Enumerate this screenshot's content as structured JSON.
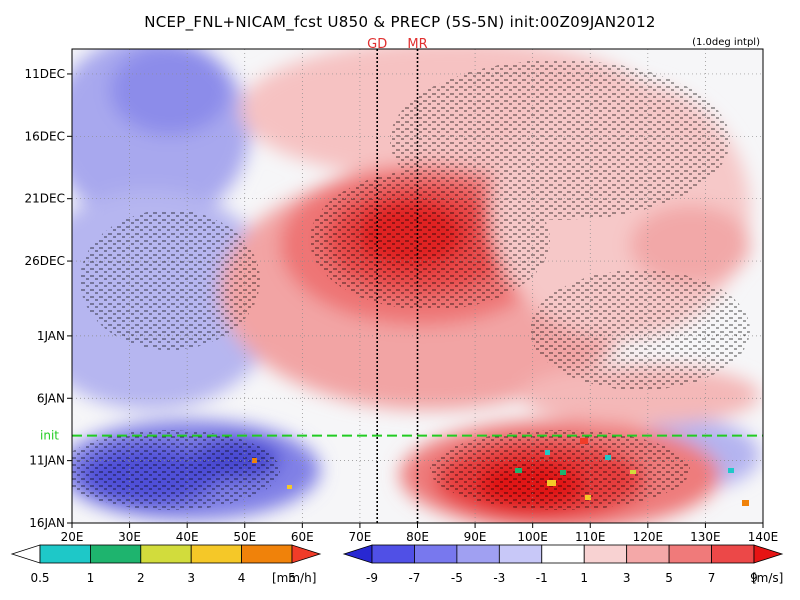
{
  "chart_data": {
    "type": "heatmap",
    "title": "NCEP_FNL+NICAM_fcst U850 & PRECP (5S-5N) init:00Z09JAN2012",
    "subtitle": "(1.0deg intpl)",
    "xlabel": "",
    "ylabel": "",
    "x_ticks": [
      "20E",
      "30E",
      "40E",
      "50E",
      "60E",
      "70E",
      "80E",
      "90E",
      "100E",
      "110E",
      "120E",
      "130E",
      "140E"
    ],
    "x_values": [
      20,
      30,
      40,
      50,
      60,
      70,
      80,
      90,
      100,
      110,
      120,
      130,
      140
    ],
    "xlim": [
      20,
      140
    ],
    "y_ticks": [
      "11DEC",
      "16DEC",
      "21DEC",
      "26DEC",
      "1JAN",
      "6JAN",
      "11JAN",
      "16JAN"
    ],
    "y_days": [
      2,
      7,
      12,
      17,
      23,
      28,
      33,
      38
    ],
    "ylim_days": [
      0,
      38
    ],
    "init_label": "init",
    "init_day": 31,
    "markers": [
      {
        "label": "GD",
        "lon": 73
      },
      {
        "label": "MR",
        "lon": 80
      }
    ],
    "precip_colorbar": {
      "levels": [
        "0.5",
        "1",
        "2",
        "3",
        "4",
        "5"
      ],
      "unit": "[mm/h]",
      "colors": [
        "#ffffff",
        "#1ec8c8",
        "#1eb46e",
        "#d2dc3c",
        "#f5c828",
        "#f0820a",
        "#f03c28"
      ]
    },
    "wind_colorbar": {
      "levels": [
        "-9",
        "-7",
        "-5",
        "-3",
        "-1",
        "1",
        "3",
        "5",
        "7",
        "9"
      ],
      "unit": "[m/s]",
      "colors": [
        "#2828d2",
        "#5050e6",
        "#7878ee",
        "#a0a0f2",
        "#c8c8f8",
        "#ffffff",
        "#f8d2d2",
        "#f4a8a8",
        "#f07a7a",
        "#ec4848",
        "#e61414"
      ]
    },
    "u850_field": [
      {
        "lon": 30,
        "day": 8,
        "value": -6
      },
      {
        "lon": 40,
        "day": 20,
        "value": -5
      },
      {
        "lon": 45,
        "day": 35,
        "value": -7
      },
      {
        "lon": 78,
        "day": 16,
        "value": 9
      },
      {
        "lon": 100,
        "day": 36,
        "value": 9
      },
      {
        "lon": 120,
        "day": 20,
        "value": 3
      }
    ],
    "grid": true
  }
}
